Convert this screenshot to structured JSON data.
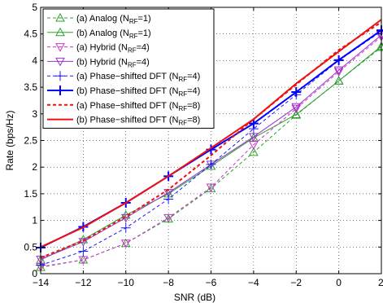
{
  "chart_data": {
    "type": "line",
    "title": "",
    "xlabel": "SNR (dB)",
    "ylabel": "Rate (bps/Hz)",
    "xlim": [
      -14,
      2
    ],
    "ylim": [
      0,
      5
    ],
    "xticks": [
      -14,
      -12,
      -10,
      -8,
      -6,
      -4,
      -2,
      0,
      2
    ],
    "yticks": [
      0,
      0.5,
      1,
      1.5,
      2,
      2.5,
      3,
      3.5,
      4,
      4.5,
      5
    ],
    "xtick_labels": [
      "−14",
      "−12",
      "−10",
      "−8",
      "−6",
      "−4",
      "−2",
      "0",
      "2"
    ],
    "ytick_labels": [
      "0",
      "0.5",
      "1",
      "1.5",
      "2",
      "2.5",
      "3",
      "3.5",
      "4",
      "4.5",
      "5"
    ],
    "grid": true,
    "legend_position": "top-left",
    "x": [
      -14,
      -12,
      -10,
      -8,
      -6,
      -4,
      -2,
      0,
      2
    ],
    "series": [
      {
        "name": "(a) Analog (N",
        "sub": "RF",
        "suffix": "=1)",
        "color": "#2ca02c",
        "dash": "dashed",
        "marker": "triangle-up",
        "width": 1,
        "values": [
          0.12,
          0.26,
          0.57,
          1.03,
          1.6,
          2.28,
          2.98,
          3.62,
          4.25
        ]
      },
      {
        "name": "(b) Analog (N",
        "sub": "RF",
        "suffix": "=1)",
        "color": "#2ca02c",
        "dash": "solid",
        "marker": "triangle-up",
        "width": 1,
        "values": [
          0.26,
          0.64,
          1.1,
          1.5,
          2.02,
          2.55,
          2.99,
          3.62,
          4.27
        ]
      },
      {
        "name": "(a) Hybrid (N",
        "sub": "RF",
        "suffix": "=4)",
        "color": "#cc33cc",
        "dash": "dashed",
        "marker": "triangle-down",
        "width": 1,
        "values": [
          0.13,
          0.26,
          0.57,
          1.05,
          1.62,
          2.42,
          3.1,
          3.79,
          4.45
        ]
      },
      {
        "name": "(b) Hybrid (N",
        "sub": "RF",
        "suffix": "=4)",
        "color": "#9933cc",
        "dash": "solid",
        "marker": "triangle-down",
        "width": 1,
        "values": [
          0.27,
          0.6,
          1.05,
          1.52,
          2.05,
          2.57,
          3.13,
          3.82,
          4.48
        ]
      },
      {
        "name": "(a) Phase−shifted DFT (N",
        "sub": "RF",
        "suffix": "=4)",
        "color": "#1a1aff",
        "dash": "dashed",
        "marker": "plus",
        "width": 1,
        "values": [
          0.16,
          0.42,
          0.86,
          1.4,
          2.05,
          2.72,
          3.36,
          4.0,
          4.55
        ]
      },
      {
        "name": "(b) Phase−shifted DFT (N",
        "sub": "RF",
        "suffix": "=4)",
        "color": "#0000ff",
        "dash": "solid",
        "marker": "plus",
        "width": 2,
        "values": [
          0.49,
          0.88,
          1.33,
          1.83,
          2.33,
          2.82,
          3.41,
          4.01,
          4.57
        ]
      },
      {
        "name": "(a) Phase−shifted DFT (N",
        "sub": "RF",
        "suffix": "=8)",
        "color": "#ee1111",
        "dash": "dashed",
        "marker": "none",
        "width": 2,
        "values": [
          0.3,
          0.62,
          1.07,
          1.58,
          2.22,
          2.9,
          3.55,
          4.2,
          4.72
        ]
      },
      {
        "name": "(b) Phase−shifted DFT (N",
        "sub": "RF",
        "suffix": "=8)",
        "color": "#ee1111",
        "dash": "solid",
        "marker": "none",
        "width": 2,
        "values": [
          0.5,
          0.87,
          1.33,
          1.83,
          2.36,
          2.9,
          3.57,
          4.17,
          4.77
        ]
      }
    ]
  }
}
